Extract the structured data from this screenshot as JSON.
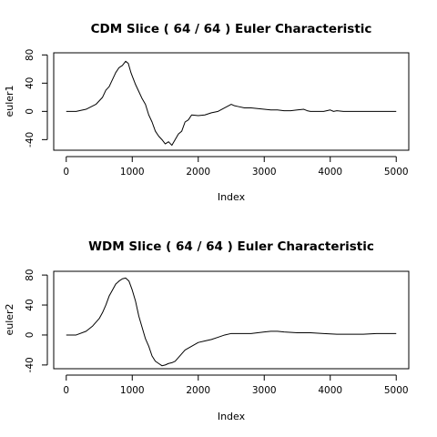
{
  "chart_data": [
    {
      "type": "line",
      "title": "CDM Slice ( 64 / 64 ) Euler Characteristic",
      "xlabel": "Index",
      "ylabel": "euler1",
      "xlim": [
        -190,
        5190
      ],
      "ylim": [
        -55,
        83
      ],
      "xticks": [
        0,
        1000,
        2000,
        3000,
        4000,
        5000
      ],
      "yticks": [
        -40,
        0,
        40,
        80
      ],
      "grid": false,
      "x": [
        0,
        150,
        300,
        450,
        550,
        600,
        650,
        700,
        750,
        800,
        850,
        900,
        940,
        980,
        1000,
        1050,
        1100,
        1150,
        1200,
        1250,
        1300,
        1350,
        1400,
        1450,
        1500,
        1550,
        1600,
        1650,
        1700,
        1750,
        1800,
        1850,
        1900,
        2000,
        2100,
        2200,
        2300,
        2400,
        2500,
        2550,
        2600,
        2700,
        2800,
        2900,
        3000,
        3100,
        3200,
        3300,
        3400,
        3500,
        3600,
        3650,
        3700,
        3800,
        3900,
        4000,
        4050,
        4100,
        4200,
        4400,
        4600,
        4800,
        5000
      ],
      "y": [
        0,
        0,
        3,
        10,
        20,
        30,
        35,
        45,
        55,
        62,
        65,
        71,
        68,
        55,
        50,
        38,
        28,
        18,
        10,
        -5,
        -15,
        -28,
        -35,
        -40,
        -46,
        -43,
        -48,
        -40,
        -32,
        -28,
        -15,
        -12,
        -5,
        -6,
        -5,
        -2,
        0,
        5,
        10,
        8,
        7,
        5,
        5,
        4,
        3,
        2,
        2,
        1,
        1,
        2,
        3,
        1,
        0,
        0,
        0,
        2,
        0,
        1,
        0,
        0,
        0,
        0,
        0
      ]
    },
    {
      "type": "line",
      "title": "WDM Slice ( 64 / 64 ) Euler Characteristic",
      "xlabel": "Index",
      "ylabel": "euler2",
      "xlim": [
        -190,
        5190
      ],
      "ylim": [
        -45,
        85
      ],
      "xticks": [
        0,
        1000,
        2000,
        3000,
        4000,
        5000
      ],
      "yticks": [
        -40,
        0,
        40,
        80
      ],
      "grid": false,
      "x": [
        0,
        150,
        300,
        400,
        500,
        550,
        600,
        650,
        700,
        750,
        800,
        850,
        900,
        950,
        1000,
        1050,
        1100,
        1150,
        1200,
        1250,
        1300,
        1350,
        1400,
        1450,
        1500,
        1550,
        1600,
        1650,
        1700,
        1750,
        1800,
        1900,
        2000,
        2100,
        2200,
        2300,
        2400,
        2500,
        2600,
        2700,
        2800,
        2900,
        3000,
        3100,
        3200,
        3300,
        3500,
        3700,
        3900,
        4100,
        4300,
        4500,
        4700,
        4900,
        5000
      ],
      "y": [
        0,
        0,
        5,
        12,
        22,
        30,
        40,
        52,
        60,
        68,
        72,
        75,
        76,
        72,
        60,
        45,
        25,
        10,
        -5,
        -15,
        -28,
        -35,
        -38,
        -41,
        -40,
        -38,
        -37,
        -35,
        -30,
        -25,
        -20,
        -15,
        -10,
        -8,
        -6,
        -3,
        0,
        2,
        2,
        2,
        2,
        3,
        4,
        5,
        5,
        4,
        3,
        3,
        2,
        1,
        1,
        1,
        2,
        2,
        2
      ]
    }
  ]
}
